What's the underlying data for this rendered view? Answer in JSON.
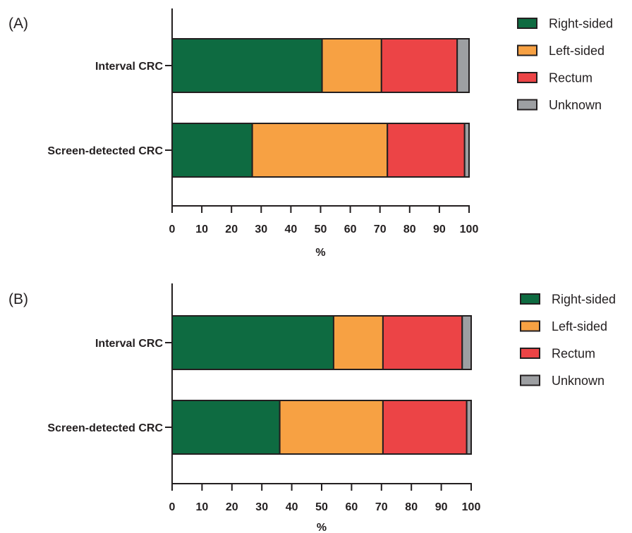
{
  "chart_data": [
    {
      "type": "bar",
      "orientation": "horizontal",
      "stacked": true,
      "panel_label": "(A)",
      "categories": [
        "Interval CRC",
        "Screen-detected CRC"
      ],
      "series": [
        {
          "name": "Right-sided",
          "values": [
            50.5,
            27.0
          ]
        },
        {
          "name": "Left-sided",
          "values": [
            20.0,
            45.5
          ]
        },
        {
          "name": "Rectum",
          "values": [
            25.5,
            26.0
          ]
        },
        {
          "name": "Unknown",
          "values": [
            4.0,
            1.5
          ]
        }
      ],
      "xlabel": "%",
      "xlim": [
        0,
        100
      ],
      "xticks": [
        "0",
        "10",
        "20",
        "30",
        "40",
        "50",
        "60",
        "70",
        "80",
        "90",
        "100"
      ],
      "legend_position": "right",
      "grid": false
    },
    {
      "type": "bar",
      "orientation": "horizontal",
      "stacked": true,
      "panel_label": "(B)",
      "categories": [
        "Interval CRC",
        "Screen-detected CRC"
      ],
      "series": [
        {
          "name": "Right-sided",
          "values": [
            54.0,
            36.0
          ]
        },
        {
          "name": "Left-sided",
          "values": [
            16.5,
            34.5
          ]
        },
        {
          "name": "Rectum",
          "values": [
            26.5,
            28.0
          ]
        },
        {
          "name": "Unknown",
          "values": [
            3.0,
            1.5
          ]
        }
      ],
      "xlabel": "%",
      "xlim": [
        0,
        100
      ],
      "xticks": [
        "0",
        "10",
        "20",
        "30",
        "40",
        "50",
        "60",
        "70",
        "80",
        "90",
        "100"
      ],
      "legend_position": "right",
      "grid": false
    }
  ],
  "colors": {
    "Right-sided": "#0e6b41",
    "Left-sided": "#f7a143",
    "Rectum": "#ec4446",
    "Unknown": "#9d9fa2",
    "stroke": "#231f20"
  }
}
